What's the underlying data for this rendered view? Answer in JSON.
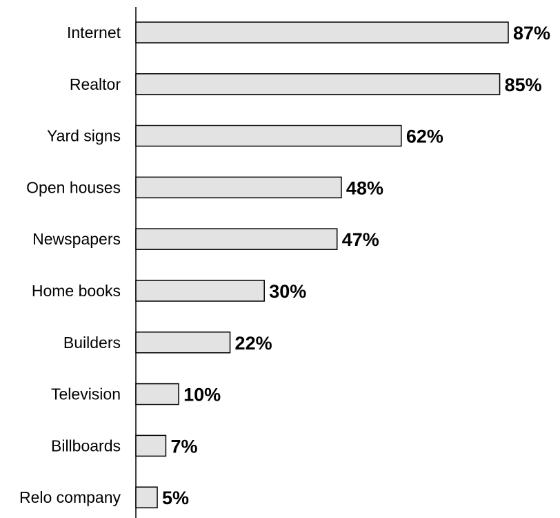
{
  "chart_data": {
    "type": "bar",
    "orientation": "horizontal",
    "categories": [
      "Internet",
      "Realtor",
      "Yard signs",
      "Open houses",
      "Newspapers",
      "Home books",
      "Builders",
      "Television",
      "Billboards",
      "Relo company"
    ],
    "values": [
      87,
      85,
      62,
      48,
      47,
      30,
      22,
      10,
      7,
      5
    ],
    "value_labels": [
      "87%",
      "85%",
      "62%",
      "48%",
      "47%",
      "30%",
      "22%",
      "10%",
      "7%",
      "5%"
    ],
    "unit": "%",
    "title": "",
    "xlabel": "",
    "ylabel": "",
    "xlim": [
      0,
      100
    ],
    "grid": false,
    "legend": "none",
    "colors": {
      "bar_fill": "#e3e3e3",
      "bar_stroke": "#000000",
      "text": "#000000"
    }
  }
}
